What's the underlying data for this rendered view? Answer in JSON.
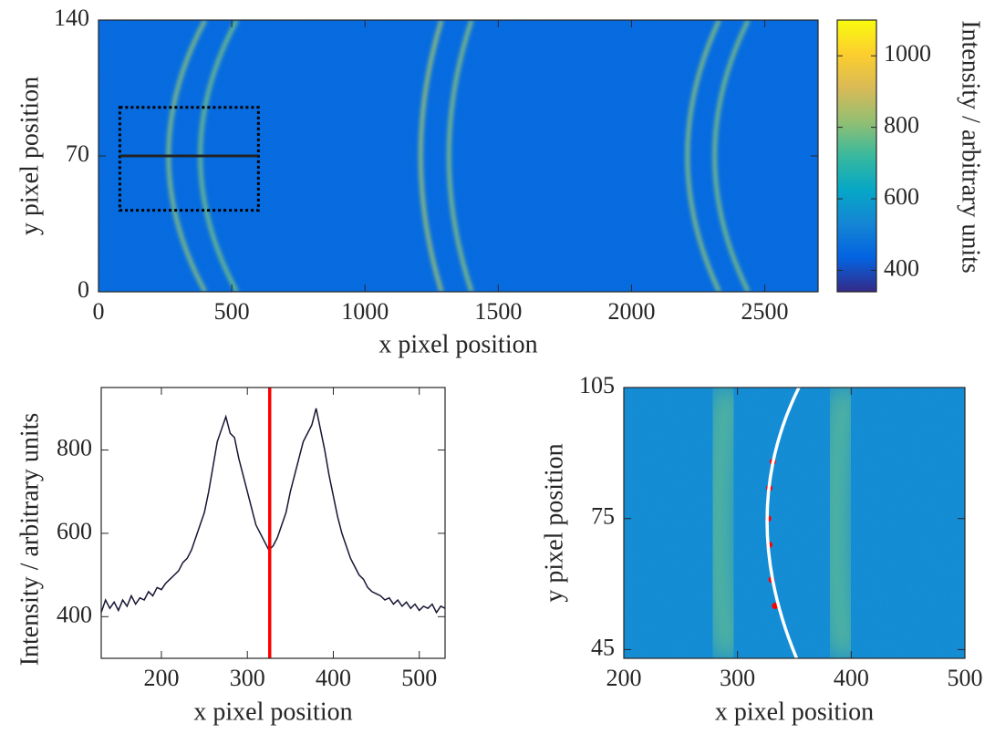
{
  "chart_data": [
    {
      "type": "heatmap",
      "xlabel": "x pixel position",
      "ylabel": "y pixel position",
      "xlim": [
        0,
        2700
      ],
      "ylim": [
        0,
        140
      ],
      "xticks": [
        0,
        500,
        1000,
        1500,
        2000,
        2500
      ],
      "yticks": [
        0,
        70,
        140
      ],
      "colormap": "parula",
      "background": 450,
      "band_width": 26,
      "rings": [
        {
          "x_center": 263,
          "x_edge": 400,
          "intensity": 800
        },
        {
          "x_center": 382,
          "x_edge": 519,
          "intensity": 780
        },
        {
          "x_center": 1209,
          "x_edge": 1287,
          "intensity": 820
        },
        {
          "x_center": 1315,
          "x_edge": 1400,
          "intensity": 800
        },
        {
          "x_center": 2210,
          "x_edge": 2329,
          "intensity": 800
        },
        {
          "x_center": 2312,
          "x_edge": 2438,
          "intensity": 790
        }
      ],
      "colorbar": {
        "label": "Intensity / arbitrary units",
        "clim": [
          340,
          1100
        ],
        "ticks": [
          400,
          600,
          800,
          1000
        ]
      },
      "roi": {
        "x": [
          80,
          600
        ],
        "y": [
          42,
          95
        ]
      },
      "profile_y": 70
    },
    {
      "type": "line",
      "xlabel": "x pixel position",
      "ylabel": "Intensity / arbitrary units",
      "xlim": [
        130,
        530
      ],
      "ylim": [
        300,
        950
      ],
      "xticks": [
        200,
        300,
        400,
        500
      ],
      "yticks": [
        400,
        600,
        800
      ],
      "color": "#161633",
      "marker_x": 326,
      "marker_color": "#ff0000",
      "x": [
        130,
        135,
        140,
        145,
        150,
        155,
        160,
        165,
        170,
        175,
        180,
        185,
        190,
        195,
        200,
        205,
        210,
        215,
        220,
        225,
        230,
        235,
        240,
        245,
        250,
        255,
        260,
        265,
        270,
        275,
        280,
        285,
        290,
        295,
        300,
        305,
        310,
        315,
        320,
        325,
        330,
        335,
        340,
        345,
        350,
        355,
        360,
        365,
        370,
        375,
        380,
        385,
        390,
        395,
        400,
        405,
        410,
        415,
        420,
        425,
        430,
        435,
        440,
        445,
        450,
        455,
        460,
        465,
        470,
        475,
        480,
        485,
        490,
        495,
        500,
        505,
        510,
        515,
        520,
        525,
        530
      ],
      "values": [
        410,
        440,
        420,
        435,
        415,
        440,
        425,
        450,
        430,
        445,
        440,
        460,
        450,
        470,
        465,
        480,
        490,
        500,
        510,
        530,
        540,
        560,
        590,
        620,
        650,
        700,
        760,
        820,
        850,
        880,
        840,
        830,
        780,
        740,
        700,
        660,
        620,
        600,
        580,
        560,
        570,
        590,
        620,
        650,
        700,
        740,
        780,
        820,
        840,
        860,
        900,
        850,
        800,
        740,
        690,
        640,
        600,
        570,
        540,
        520,
        500,
        490,
        470,
        460,
        455,
        450,
        440,
        445,
        430,
        440,
        425,
        435,
        420,
        430,
        415,
        425,
        420,
        430,
        410,
        425,
        420
      ]
    },
    {
      "type": "heatmap",
      "xlabel": "x pixel position",
      "ylabel": "y pixel position",
      "xlim": [
        200,
        500
      ],
      "ylim": [
        43,
        105
      ],
      "xticks": [
        200,
        300,
        400,
        500
      ],
      "yticks": [
        45,
        75,
        105
      ],
      "colormap": "parula",
      "background": 540,
      "band_width": 40,
      "rings": [
        {
          "x_center": 283,
          "x_edge": 292,
          "intensity": 760
        },
        {
          "x_center": 386,
          "x_edge": 395,
          "intensity": 760
        }
      ],
      "fit": {
        "x": [
          354,
          326,
          352
        ],
        "y": [
          105,
          75,
          43
        ]
      },
      "peaks": {
        "x": [
          331,
          328,
          327,
          328,
          330,
          333
        ],
        "y": [
          88,
          82,
          75,
          69,
          61,
          55
        ]
      }
    }
  ]
}
